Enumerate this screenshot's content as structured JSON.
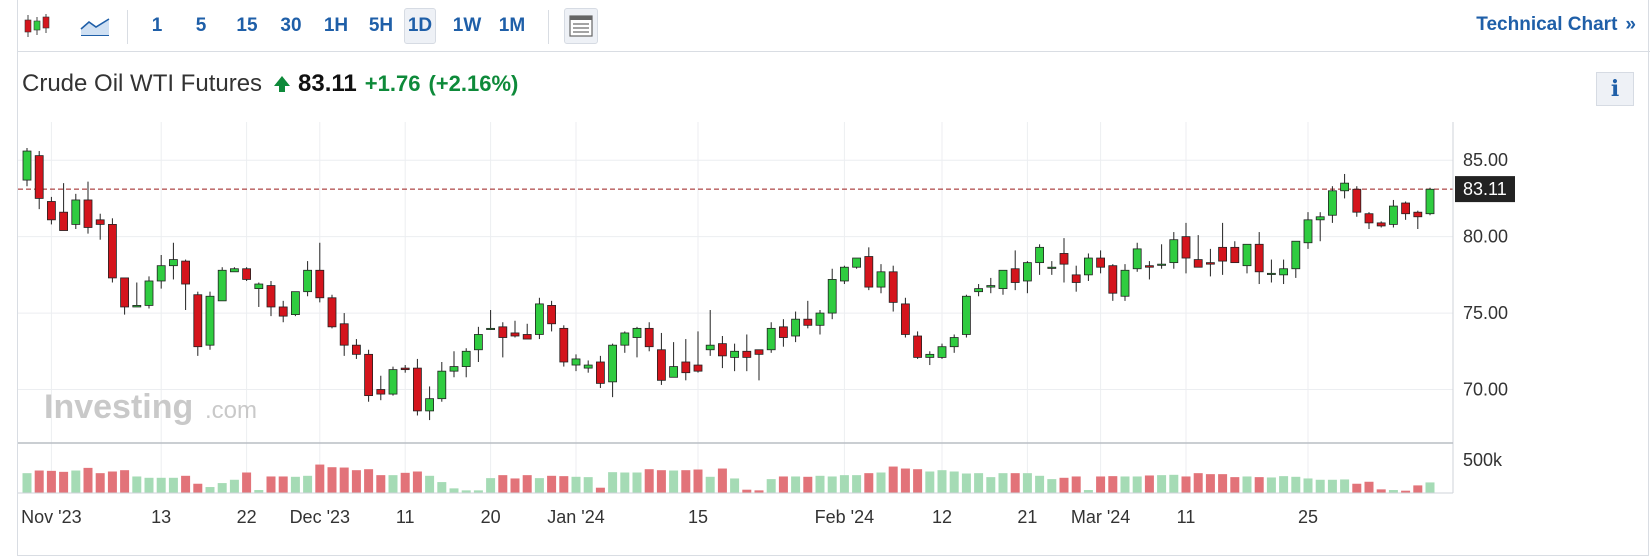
{
  "toolbar": {
    "chart_type_icons": [
      "candlestick-icon",
      "area-chart-icon"
    ],
    "intervals": [
      "1",
      "5",
      "15",
      "30",
      "1H",
      "5H",
      "1D",
      "1W",
      "1M"
    ],
    "active_interval": "1D",
    "layout_icon": "layout-icon",
    "technical_link": "Technical Chart",
    "technical_link_arrow": "»"
  },
  "header": {
    "title": "Crude Oil WTI Futures",
    "price": "83.11",
    "change": "+1.76",
    "change_pct": "(+2.16%)",
    "info_label": "i"
  },
  "watermark": {
    "word": "Investing",
    "suffix": ".com"
  },
  "colors": {
    "up": "#2fcc40",
    "down": "#d4141c",
    "vol_up": "#a5dbb5",
    "vol_down": "#e27379",
    "grid": "#eceef1",
    "last_price_box": "#222222",
    "accent": "#1f5fa8"
  },
  "chart_data": {
    "type": "candlestick",
    "title": "Crude Oil WTI Futures",
    "last_price": 83.11,
    "last_price_label": "83.11",
    "ylim": [
      66.5,
      87.5
    ],
    "y_ticks": [
      85,
      80,
      75,
      70
    ],
    "y_tick_labels": [
      "85.00",
      "80.00",
      "75.00",
      "70.00"
    ],
    "volume_tick_label": "500k",
    "volume_tick_value": 500,
    "volume_max": 620,
    "x_tick_labels": [
      {
        "label": "Nov '23",
        "index": 2
      },
      {
        "label": "13",
        "index": 11
      },
      {
        "label": "22",
        "index": 18
      },
      {
        "label": "Dec '23",
        "index": 24
      },
      {
        "label": "11",
        "index": 31
      },
      {
        "label": "20",
        "index": 38
      },
      {
        "label": "Jan '24",
        "index": 45
      },
      {
        "label": "15",
        "index": 55
      },
      {
        "label": "Feb '24",
        "index": 67
      },
      {
        "label": "12",
        "index": 75
      },
      {
        "label": "21",
        "index": 82
      },
      {
        "label": "Mar '24",
        "index": 88
      },
      {
        "label": "11",
        "index": 95
      },
      {
        "label": "25",
        "index": 105
      }
    ],
    "candles": [
      [
        83.7,
        85.8,
        83.3,
        85.6,
        300
      ],
      [
        85.3,
        85.6,
        81.8,
        82.5,
        340
      ],
      [
        82.3,
        82.6,
        80.8,
        81.1,
        335
      ],
      [
        81.6,
        83.5,
        80.5,
        80.4,
        320
      ],
      [
        80.8,
        82.8,
        80.5,
        82.4,
        340
      ],
      [
        82.4,
        83.6,
        80.2,
        80.6,
        380
      ],
      [
        81.1,
        81.5,
        79.8,
        80.8,
        300
      ],
      [
        80.8,
        81.2,
        77.0,
        77.3,
        325
      ],
      [
        77.3,
        77.3,
        74.9,
        75.4,
        345
      ],
      [
        75.4,
        77.0,
        75.5,
        75.5,
        250
      ],
      [
        75.5,
        77.4,
        75.3,
        77.1,
        230
      ],
      [
        77.1,
        78.8,
        76.6,
        78.1,
        230
      ],
      [
        78.1,
        79.6,
        77.2,
        78.5,
        230
      ],
      [
        78.4,
        78.5,
        75.2,
        76.9,
        260
      ],
      [
        76.2,
        76.4,
        72.2,
        72.8,
        140
      ],
      [
        72.9,
        76.4,
        72.6,
        76.1,
        90
      ],
      [
        75.8,
        78.0,
        75.8,
        77.8,
        150
      ],
      [
        77.7,
        78.0,
        77.7,
        77.9,
        200
      ],
      [
        77.9,
        78.0,
        77.1,
        77.2,
        310
      ],
      [
        76.6,
        77.0,
        75.4,
        76.9,
        45
      ],
      [
        76.8,
        77.1,
        74.8,
        75.4,
        250
      ],
      [
        75.4,
        75.8,
        74.4,
        74.8,
        250
      ],
      [
        74.9,
        76.4,
        74.8,
        76.4,
        245
      ],
      [
        76.4,
        78.4,
        76.1,
        77.8,
        260
      ],
      [
        77.8,
        79.6,
        75.7,
        76.0,
        430
      ],
      [
        76.0,
        76.2,
        74.0,
        74.1,
        390
      ],
      [
        74.3,
        75.0,
        72.2,
        72.9,
        385
      ],
      [
        72.9,
        73.3,
        72.0,
        72.3,
        345
      ],
      [
        72.3,
        72.6,
        69.2,
        69.6,
        360
      ],
      [
        70.0,
        70.9,
        69.3,
        69.7,
        270
      ],
      [
        69.7,
        71.5,
        69.6,
        71.3,
        270
      ],
      [
        71.4,
        71.6,
        71.1,
        71.3,
        305
      ],
      [
        71.4,
        72.0,
        68.3,
        68.6,
        325
      ],
      [
        68.6,
        70.2,
        68.0,
        69.4,
        260
      ],
      [
        69.4,
        71.8,
        69.2,
        71.2,
        165
      ],
      [
        71.2,
        72.5,
        70.8,
        71.5,
        70
      ],
      [
        71.5,
        72.7,
        70.8,
        72.5,
        40
      ],
      [
        72.6,
        74.1,
        71.8,
        73.6,
        40
      ],
      [
        74.0,
        75.2,
        73.9,
        74.0,
        225
      ],
      [
        74.1,
        74.4,
        72.1,
        73.4,
        270
      ],
      [
        73.7,
        74.5,
        73.4,
        73.5,
        220
      ],
      [
        73.6,
        74.3,
        73.3,
        73.3,
        270
      ],
      [
        73.6,
        76.0,
        73.3,
        75.6,
        225
      ],
      [
        75.5,
        75.8,
        73.8,
        74.3,
        260
      ],
      [
        74.0,
        74.2,
        71.5,
        71.8,
        255
      ],
      [
        71.6,
        72.3,
        71.2,
        72.0,
        245
      ],
      [
        71.4,
        71.9,
        71.1,
        71.6,
        240
      ],
      [
        71.8,
        72.2,
        70.1,
        70.4,
        80
      ],
      [
        70.5,
        73.0,
        69.5,
        72.9,
        315
      ],
      [
        72.9,
        73.8,
        72.4,
        73.7,
        310
      ],
      [
        73.4,
        74.1,
        72.1,
        74.0,
        310
      ],
      [
        74.0,
        74.4,
        72.5,
        72.8,
        360
      ],
      [
        72.6,
        73.7,
        70.3,
        70.6,
        345
      ],
      [
        70.8,
        73.1,
        70.8,
        71.5,
        340
      ],
      [
        71.8,
        73.3,
        70.6,
        71.1,
        345
      ],
      [
        71.6,
        73.8,
        71.1,
        71.2,
        355
      ],
      [
        72.6,
        75.2,
        72.2,
        72.9,
        245
      ],
      [
        73.0,
        73.5,
        71.4,
        72.2,
        370
      ],
      [
        72.1,
        73.0,
        71.2,
        72.5,
        220
      ],
      [
        72.5,
        73.6,
        71.2,
        72.1,
        50
      ],
      [
        72.6,
        72.6,
        70.6,
        72.3,
        40
      ],
      [
        72.6,
        74.4,
        72.4,
        74.0,
        210
      ],
      [
        74.1,
        74.6,
        72.8,
        73.4,
        250
      ],
      [
        73.5,
        75.1,
        73.1,
        74.6,
        250
      ],
      [
        74.6,
        75.8,
        74.0,
        74.2,
        245
      ],
      [
        74.2,
        75.2,
        73.6,
        75.0,
        260
      ],
      [
        75.0,
        77.9,
        74.6,
        77.2,
        250
      ],
      [
        77.1,
        78.1,
        76.9,
        78.0,
        270
      ],
      [
        78.0,
        78.6,
        77.9,
        78.6,
        270
      ],
      [
        78.7,
        79.3,
        76.5,
        76.7,
        300
      ],
      [
        76.7,
        78.2,
        76.3,
        77.7,
        310
      ],
      [
        77.7,
        78.1,
        75.1,
        75.7,
        400
      ],
      [
        75.6,
        76.0,
        73.4,
        73.6,
        370
      ],
      [
        73.5,
        73.8,
        72.0,
        72.1,
        360
      ],
      [
        72.1,
        72.5,
        71.6,
        72.3,
        325
      ],
      [
        72.1,
        73.0,
        72.0,
        72.8,
        345
      ],
      [
        72.8,
        73.6,
        72.4,
        73.4,
        325
      ],
      [
        73.6,
        76.2,
        73.4,
        76.1,
        295
      ],
      [
        76.4,
        76.9,
        76.1,
        76.6,
        300
      ],
      [
        76.7,
        77.3,
        76.3,
        76.8,
        240
      ],
      [
        76.6,
        77.8,
        76.2,
        77.8,
        300
      ],
      [
        77.9,
        79.1,
        76.5,
        77.0,
        300
      ],
      [
        77.1,
        78.4,
        76.3,
        78.3,
        300
      ],
      [
        78.3,
        79.5,
        77.5,
        79.3,
        260
      ],
      [
        78.0,
        78.4,
        77.5,
        78.0,
        210
      ],
      [
        78.9,
        79.9,
        77.0,
        78.2,
        230
      ],
      [
        77.5,
        78.1,
        76.4,
        77.0,
        250
      ],
      [
        77.5,
        78.9,
        77.1,
        78.6,
        45
      ],
      [
        78.6,
        79.1,
        77.6,
        78.0,
        250
      ],
      [
        78.1,
        78.2,
        75.8,
        76.3,
        255
      ],
      [
        76.1,
        78.2,
        75.8,
        77.8,
        250
      ],
      [
        77.9,
        79.6,
        77.7,
        79.2,
        250
      ],
      [
        78.1,
        78.4,
        77.2,
        78.0,
        265
      ],
      [
        78.2,
        79.5,
        77.9,
        78.2,
        270
      ],
      [
        78.3,
        80.3,
        77.9,
        79.8,
        275
      ],
      [
        80.0,
        80.9,
        77.6,
        78.6,
        250
      ],
      [
        78.5,
        80.1,
        78.0,
        78.0,
        300
      ],
      [
        78.3,
        79.2,
        77.4,
        78.2,
        285
      ],
      [
        79.3,
        80.9,
        77.5,
        78.4,
        285
      ],
      [
        79.3,
        79.7,
        78.4,
        78.3,
        240
      ],
      [
        78.1,
        79.5,
        77.6,
        79.5,
        250
      ],
      [
        79.5,
        80.3,
        76.9,
        77.7,
        240
      ],
      [
        77.6,
        78.5,
        77.0,
        77.6,
        235
      ],
      [
        77.5,
        78.5,
        76.9,
        77.9,
        255
      ],
      [
        77.9,
        79.6,
        77.3,
        79.7,
        245
      ],
      [
        79.6,
        81.6,
        79.2,
        81.1,
        220
      ],
      [
        81.1,
        81.6,
        79.7,
        81.3,
        200
      ],
      [
        81.4,
        83.3,
        80.9,
        83.0,
        200
      ],
      [
        83.0,
        84.1,
        82.5,
        83.5,
        205
      ],
      [
        83.1,
        83.3,
        81.3,
        81.6,
        140
      ],
      [
        81.5,
        81.6,
        80.5,
        80.9,
        170
      ],
      [
        80.9,
        81.0,
        80.6,
        80.7,
        55
      ],
      [
        80.8,
        82.4,
        80.6,
        82.0,
        45
      ],
      [
        82.2,
        82.3,
        81.1,
        81.5,
        35
      ],
      [
        81.6,
        81.7,
        80.5,
        81.3,
        115
      ],
      [
        81.5,
        83.2,
        81.4,
        83.1,
        160
      ]
    ]
  }
}
